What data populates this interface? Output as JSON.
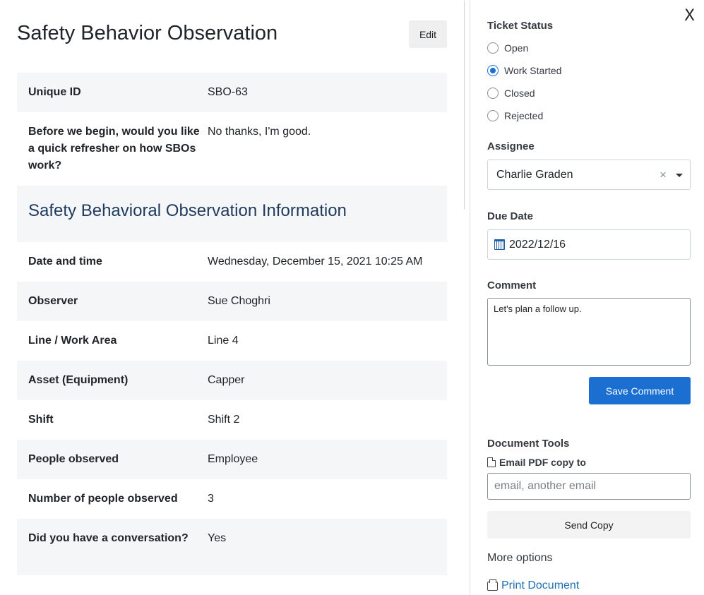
{
  "form": {
    "title": "Safety Behavior Observation",
    "edit_label": "Edit",
    "unique_id": {
      "label": "Unique ID",
      "value": "SBO-63"
    },
    "refresher": {
      "label": "Before we begin, would you like a quick refresher on how SBOs work?",
      "value": "No thanks, I'm good."
    },
    "section_title": "Safety Behavioral Observation Information",
    "fields": [
      {
        "label": "Date and time",
        "value": "Wednesday, December 15, 2021 10:25 AM"
      },
      {
        "label": "Observer",
        "value": "Sue Choghri"
      },
      {
        "label": "Line / Work Area",
        "value": "Line 4"
      },
      {
        "label": "Asset (Equipment)",
        "value": "Capper"
      },
      {
        "label": "Shift",
        "value": "Shift 2"
      },
      {
        "label": "People observed",
        "value": "Employee"
      },
      {
        "label": "Number of people observed",
        "value": "3"
      },
      {
        "label": "Did you have a conversation?",
        "value": "Yes"
      }
    ]
  },
  "panel": {
    "close_label": "X",
    "ticket_status": {
      "label": "Ticket Status",
      "options": [
        "Open",
        "Work Started",
        "Closed",
        "Rejected"
      ],
      "selected": "Work Started"
    },
    "assignee": {
      "label": "Assignee",
      "value": "Charlie Graden",
      "clear_symbol": "×"
    },
    "due_date": {
      "label": "Due Date",
      "value": "2022/12/16"
    },
    "comment": {
      "label": "Comment",
      "value": "Let's plan a follow up."
    },
    "save_comment_label": "Save Comment",
    "document_tools": {
      "label": "Document Tools",
      "email_pdf_label": "Email PDF copy to",
      "email_placeholder": "email, another email",
      "send_copy_label": "Send Copy"
    },
    "more_options_label": "More options",
    "print_label": "Print Document"
  }
}
